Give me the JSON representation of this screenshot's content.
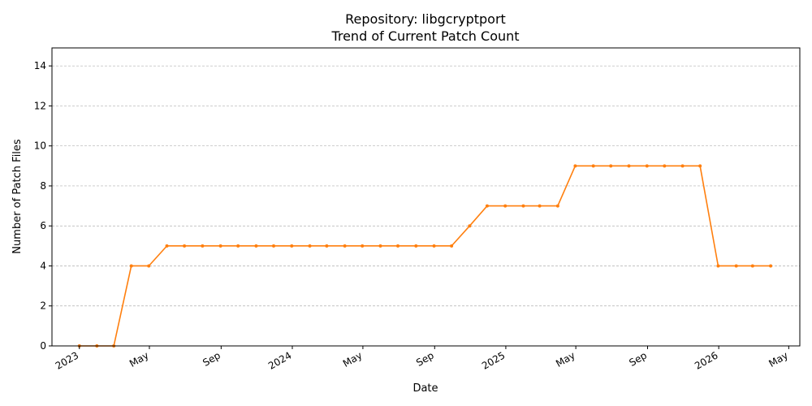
{
  "chart_data": {
    "type": "line",
    "title": "Repository: libgcryptport",
    "subtitle": "Trend of Current Patch Count",
    "xlabel": "Date",
    "ylabel": "Number of Patch Files",
    "ylim": [
      0,
      14.9
    ],
    "xlim": [
      "2022-11-15",
      "2026-05-20"
    ],
    "grid": "y-dashed",
    "y_ticks": [
      0,
      2,
      4,
      6,
      8,
      10,
      12,
      14
    ],
    "x_ticks": [
      {
        "date": "2023-01-01",
        "label": "2023"
      },
      {
        "date": "2023-05-01",
        "label": "May"
      },
      {
        "date": "2023-09-01",
        "label": "Sep"
      },
      {
        "date": "2024-01-01",
        "label": "2024"
      },
      {
        "date": "2024-05-01",
        "label": "May"
      },
      {
        "date": "2024-09-01",
        "label": "Sep"
      },
      {
        "date": "2025-01-01",
        "label": "2025"
      },
      {
        "date": "2025-05-01",
        "label": "May"
      },
      {
        "date": "2025-09-01",
        "label": "Sep"
      },
      {
        "date": "2026-01-01",
        "label": "2026"
      },
      {
        "date": "2026-05-01",
        "label": "May"
      }
    ],
    "series": [
      {
        "color": "#ff7f0e",
        "points": [
          {
            "x": "2023-01-01",
            "y": 0
          },
          {
            "x": "2023-01-31",
            "y": 0
          },
          {
            "x": "2023-03-01",
            "y": 0
          },
          {
            "x": "2023-03-31",
            "y": 4
          },
          {
            "x": "2023-04-30",
            "y": 4
          },
          {
            "x": "2023-05-31",
            "y": 5
          },
          {
            "x": "2023-06-30",
            "y": 5
          },
          {
            "x": "2023-07-31",
            "y": 5
          },
          {
            "x": "2023-08-31",
            "y": 5
          },
          {
            "x": "2023-09-30",
            "y": 5
          },
          {
            "x": "2023-10-31",
            "y": 5
          },
          {
            "x": "2023-11-30",
            "y": 5
          },
          {
            "x": "2023-12-31",
            "y": 5
          },
          {
            "x": "2024-01-31",
            "y": 5
          },
          {
            "x": "2024-02-29",
            "y": 5
          },
          {
            "x": "2024-03-31",
            "y": 5
          },
          {
            "x": "2024-04-30",
            "y": 5
          },
          {
            "x": "2024-05-31",
            "y": 5
          },
          {
            "x": "2024-06-30",
            "y": 5
          },
          {
            "x": "2024-07-31",
            "y": 5
          },
          {
            "x": "2024-08-31",
            "y": 5
          },
          {
            "x": "2024-09-30",
            "y": 5
          },
          {
            "x": "2024-10-31",
            "y": 6
          },
          {
            "x": "2024-11-30",
            "y": 7
          },
          {
            "x": "2024-12-31",
            "y": 7
          },
          {
            "x": "2025-01-31",
            "y": 7
          },
          {
            "x": "2025-02-28",
            "y": 7
          },
          {
            "x": "2025-03-31",
            "y": 7
          },
          {
            "x": "2025-04-30",
            "y": 9
          },
          {
            "x": "2025-05-31",
            "y": 9
          },
          {
            "x": "2025-06-30",
            "y": 9
          },
          {
            "x": "2025-07-31",
            "y": 9
          },
          {
            "x": "2025-08-31",
            "y": 9
          },
          {
            "x": "2025-09-30",
            "y": 9
          },
          {
            "x": "2025-10-31",
            "y": 9
          },
          {
            "x": "2025-11-30",
            "y": 9
          },
          {
            "x": "2025-12-31",
            "y": 4
          },
          {
            "x": "2026-01-31",
            "y": 4
          },
          {
            "x": "2026-02-28",
            "y": 4
          },
          {
            "x": "2026-03-31",
            "y": 4
          }
        ]
      }
    ]
  }
}
